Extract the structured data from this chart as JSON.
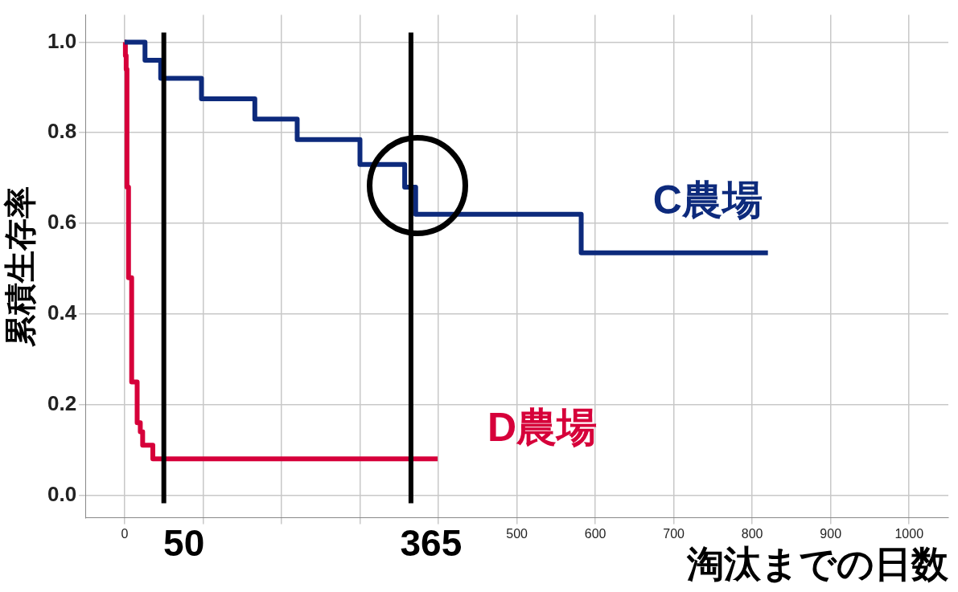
{
  "chart_data": {
    "type": "step",
    "xlabel": "淘汰までの日数",
    "ylabel": "累積生存率",
    "xlim": [
      -50,
      1050
    ],
    "xticks": [
      0,
      {
        "value": 100,
        "label": null
      },
      {
        "value": 200,
        "label": null
      },
      {
        "value": 300,
        "label": null
      },
      {
        "value": 400,
        "label": null
      },
      500,
      600,
      700,
      800,
      900,
      1000
    ],
    "ylim": [
      -0.05,
      1.06
    ],
    "yticks": [
      "0.0",
      0.2,
      0.4,
      0.6,
      0.8,
      "1.0"
    ],
    "series": [
      {
        "name": "C農場",
        "color": "#0d2a7c",
        "x": [
          0,
          26,
          46,
          98,
          166,
          220,
          300,
          357,
          371,
          582,
          820
        ],
        "values": [
          1,
          0.96,
          0.92,
          0.875,
          0.83,
          0.785,
          0.73,
          0.68,
          0.62,
          0.535,
          0.535
        ]
      },
      {
        "name": "D農場",
        "color": "#d6003a",
        "x": [
          0,
          1,
          2,
          3,
          5,
          9,
          16,
          20,
          23,
          36,
          399
        ],
        "values": [
          1,
          0.97,
          0.94,
          0.68,
          0.48,
          0.25,
          0.16,
          0.14,
          0.11,
          0.08,
          0.08
        ]
      }
    ],
    "ref_lines": [
      {
        "axis": "x",
        "value": 50,
        "label": "50",
        "color": "#000000"
      },
      {
        "axis": "x",
        "value": 365,
        "label": "365",
        "color": "#000000"
      }
    ],
    "grid": true,
    "legend": false,
    "marker": "none",
    "line_style": "solid"
  }
}
